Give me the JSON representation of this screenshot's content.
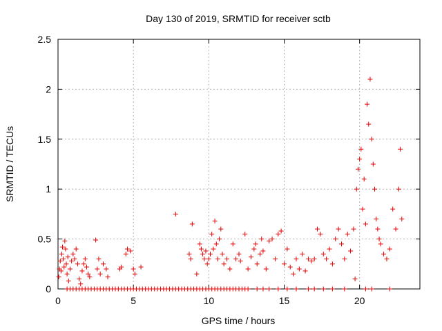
{
  "chart_data": {
    "type": "scatter",
    "title": "Day 130 of 2019, SRMTID for receiver sctb",
    "xlabel": "GPS time / hours",
    "ylabel": "SRMTID / TECUs",
    "xlim": [
      0,
      24
    ],
    "ylim": [
      0,
      2.5
    ],
    "xticks": [
      0,
      5,
      10,
      15,
      20
    ],
    "yticks": [
      0,
      0.5,
      1,
      1.5,
      2,
      2.5
    ],
    "ytick_labels": [
      "0",
      "0.5",
      "1",
      "1.5",
      "2",
      "2.5"
    ],
    "grid": true,
    "marker": "+",
    "colors": {
      "series": "#e00000",
      "grid": "#b0b0b0",
      "axis": "#000000"
    },
    "series": [
      {
        "name": "SRMTID",
        "points": [
          [
            0.05,
            0.12
          ],
          [
            0.1,
            0.2
          ],
          [
            0.15,
            0.28
          ],
          [
            0.2,
            0.18
          ],
          [
            0.25,
            0.35
          ],
          [
            0.3,
            0.42
          ],
          [
            0.35,
            0.3
          ],
          [
            0.4,
            0.22
          ],
          [
            0.45,
            0.48
          ],
          [
            0.5,
            0.4
          ],
          [
            0.55,
            0.25
          ],
          [
            0.6,
            0.15
          ],
          [
            0.65,
            0.32
          ],
          [
            0.7,
            0.08
          ],
          [
            0.8,
            0.2
          ],
          [
            0.9,
            0.28
          ],
          [
            1.0,
            0.35
          ],
          [
            1.1,
            0.3
          ],
          [
            1.2,
            0.4
          ],
          [
            1.3,
            0.25
          ],
          [
            1.4,
            0.1
          ],
          [
            1.5,
            0.05
          ],
          [
            1.6,
            0.18
          ],
          [
            1.7,
            0.25
          ],
          [
            1.8,
            0.3
          ],
          [
            1.9,
            0.22
          ],
          [
            2.0,
            0.15
          ],
          [
            2.1,
            0.12
          ],
          [
            2.5,
            0.49
          ],
          [
            2.6,
            0.2
          ],
          [
            2.7,
            0.3
          ],
          [
            2.8,
            0.15
          ],
          [
            3.0,
            0.25
          ],
          [
            3.2,
            0.2
          ],
          [
            3.3,
            0.12
          ],
          [
            4.1,
            0.2
          ],
          [
            4.2,
            0.22
          ],
          [
            4.5,
            0.35
          ],
          [
            4.6,
            0.4
          ],
          [
            4.8,
            0.38
          ],
          [
            5.0,
            0.2
          ],
          [
            5.1,
            0.15
          ],
          [
            5.5,
            0.22
          ],
          [
            7.8,
            0.75
          ],
          [
            8.7,
            0.35
          ],
          [
            8.8,
            0.3
          ],
          [
            8.9,
            0.65
          ],
          [
            9.2,
            0.15
          ],
          [
            9.4,
            0.45
          ],
          [
            9.5,
            0.4
          ],
          [
            9.6,
            0.35
          ],
          [
            9.7,
            0.3
          ],
          [
            9.8,
            0.38
          ],
          [
            9.9,
            0.25
          ],
          [
            10.0,
            0.3
          ],
          [
            10.1,
            0.35
          ],
          [
            10.2,
            0.55
          ],
          [
            10.3,
            0.4
          ],
          [
            10.4,
            0.68
          ],
          [
            10.5,
            0.45
          ],
          [
            10.6,
            0.3
          ],
          [
            10.7,
            0.5
          ],
          [
            10.8,
            0.6
          ],
          [
            10.9,
            0.35
          ],
          [
            11.0,
            0.25
          ],
          [
            11.2,
            0.3
          ],
          [
            11.4,
            0.2
          ],
          [
            11.6,
            0.45
          ],
          [
            11.8,
            0.3
          ],
          [
            12.0,
            0.35
          ],
          [
            12.1,
            0.28
          ],
          [
            12.4,
            0.55
          ],
          [
            12.6,
            0.2
          ],
          [
            12.8,
            0.32
          ],
          [
            13.0,
            0.4
          ],
          [
            13.1,
            0.45
          ],
          [
            13.2,
            0.25
          ],
          [
            13.4,
            0.35
          ],
          [
            13.5,
            0.5
          ],
          [
            13.6,
            0.38
          ],
          [
            13.8,
            0.2
          ],
          [
            14.0,
            0.48
          ],
          [
            14.2,
            0.5
          ],
          [
            14.4,
            0.3
          ],
          [
            14.6,
            0.55
          ],
          [
            14.8,
            0.58
          ],
          [
            15.0,
            0.25
          ],
          [
            15.2,
            0.4
          ],
          [
            15.4,
            0.22
          ],
          [
            15.6,
            0.15
          ],
          [
            15.8,
            0.3
          ],
          [
            16.0,
            0.2
          ],
          [
            16.2,
            0.35
          ],
          [
            16.4,
            0.18
          ],
          [
            16.6,
            0.3
          ],
          [
            16.8,
            0.28
          ],
          [
            17.0,
            0.3
          ],
          [
            17.2,
            0.6
          ],
          [
            17.4,
            0.55
          ],
          [
            17.6,
            0.35
          ],
          [
            17.8,
            0.3
          ],
          [
            18.0,
            0.4
          ],
          [
            18.2,
            0.25
          ],
          [
            18.4,
            0.5
          ],
          [
            18.6,
            0.6
          ],
          [
            18.8,
            0.45
          ],
          [
            19.0,
            0.3
          ],
          [
            19.2,
            0.55
          ],
          [
            19.4,
            0.38
          ],
          [
            19.6,
            0.6
          ],
          [
            19.7,
            0.1
          ],
          [
            19.8,
            1.0
          ],
          [
            19.9,
            1.2
          ],
          [
            20.0,
            1.3
          ],
          [
            20.1,
            1.4
          ],
          [
            20.2,
            0.8
          ],
          [
            20.3,
            1.1
          ],
          [
            20.4,
            0.65
          ],
          [
            20.5,
            1.85
          ],
          [
            20.6,
            1.65
          ],
          [
            20.7,
            2.1
          ],
          [
            20.8,
            1.5
          ],
          [
            20.9,
            1.25
          ],
          [
            21.0,
            1.0
          ],
          [
            21.1,
            0.7
          ],
          [
            21.2,
            0.6
          ],
          [
            21.3,
            0.5
          ],
          [
            21.4,
            0.45
          ],
          [
            21.6,
            0.35
          ],
          [
            21.8,
            0.3
          ],
          [
            22.0,
            0.4
          ],
          [
            22.2,
            0.8
          ],
          [
            22.4,
            0.6
          ],
          [
            22.6,
            1.0
          ],
          [
            22.7,
            1.4
          ],
          [
            22.8,
            0.7
          ]
        ]
      }
    ],
    "zero_rows_hours": [
      0.6,
      0.8,
      1.0,
      1.2,
      1.4,
      1.6,
      1.8,
      2.0,
      2.2,
      2.4,
      2.6,
      2.8,
      3.0,
      3.2,
      3.4,
      3.6,
      3.8,
      4.0,
      4.2,
      4.4,
      4.6,
      4.8,
      5.0,
      5.2,
      5.4,
      5.6,
      5.8,
      6.0,
      6.2,
      6.4,
      6.6,
      6.8,
      7.0,
      7.2,
      7.4,
      7.6,
      7.8,
      8.0,
      8.2,
      8.4,
      8.6,
      8.8,
      9.0,
      9.2,
      9.4,
      9.6,
      9.8,
      10.0,
      10.2,
      10.4,
      10.6,
      10.8,
      11.0,
      11.2,
      11.4,
      11.6,
      11.8,
      12.0,
      12.2,
      12.4,
      12.6,
      13.2,
      13.6,
      14.0,
      14.6,
      15.2,
      15.8,
      16.6,
      17.0,
      17.6,
      18.2,
      19.0,
      20.4,
      20.8,
      22.0
    ]
  }
}
